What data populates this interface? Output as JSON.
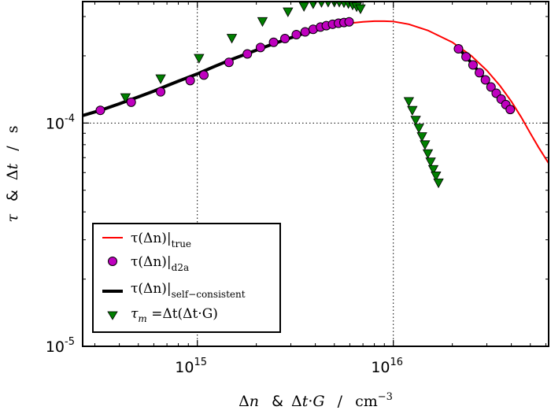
{
  "chart_data": {
    "type": "scatter",
    "xscale": "log",
    "yscale": "log",
    "xlim": [
      260000000000000.0,
      6.2e+16
    ],
    "ylim": [
      1e-05,
      0.00035
    ],
    "grid_x": [
      1000000000000000.0,
      1e+16
    ],
    "grid_y": [
      0.0001
    ],
    "grid": "dotted",
    "xticks": [
      {
        "value": 1000000000000000.0,
        "base": "10",
        "exp": "15"
      },
      {
        "value": 1e+16,
        "base": "10",
        "exp": "16"
      }
    ],
    "yticks": [
      {
        "value": 1e-05,
        "base": "10",
        "exp": "-5"
      },
      {
        "value": 0.0001,
        "base": "10",
        "exp": "-4"
      }
    ],
    "xlabel": {
      "delta": "Δ",
      "n": "n",
      "amp": "&",
      "delta2": "Δ",
      "t": "t",
      "dot": "·",
      "G": "G",
      "slash": "/",
      "unit": "cm",
      "unit_exp": "−3"
    },
    "ylabel": {
      "tau": "τ",
      "amp": "&",
      "delta": "Δ",
      "t": "t",
      "slash": "/",
      "unit": "s"
    },
    "legend_position": "lower-left",
    "series": [
      {
        "name": "τ(Δn)|true",
        "legend": {
          "main": "τ(Δn)",
          "sub": "true"
        },
        "style": "line",
        "color": "#ff0000",
        "x": [
          260000000000000.0,
          320000000000000.0,
          400000000000000.0,
          500000000000000.0,
          600000000000000.0,
          700000000000000.0,
          800000000000000.0,
          1000000000000000.0,
          1200000000000000.0,
          1500000000000000.0,
          2000000000000000.0,
          2500000000000000.0,
          3000000000000000.0,
          4000000000000000.0,
          5000000000000000.0,
          6000000000000000.0,
          7000000000000000.0,
          8000000000000000.0,
          9000000000000000.0,
          1e+16,
          1.2e+16,
          1.5e+16,
          2e+16,
          2.5e+16,
          3e+16,
          3.5e+16,
          4e+16,
          4.5e+16,
          5e+16,
          5.5e+16,
          6.2e+16
        ],
        "y": [
          0.000108,
          0.000114,
          0.000122,
          0.000131,
          0.000139,
          0.000147,
          0.000154,
          0.000166,
          0.000178,
          0.000193,
          0.000212,
          0.000228,
          0.000241,
          0.00026,
          0.000273,
          0.00028,
          0.000284,
          0.000286,
          0.000286,
          0.000285,
          0.000277,
          0.00026,
          0.00023,
          0.0002,
          0.000172,
          0.000147,
          0.000125,
          0.000106,
          9e-05,
          7.8e-05,
          6.6e-05
        ]
      },
      {
        "name": "τ(Δn)|d2a",
        "legend": {
          "main": "τ(Δn)",
          "sub": "d2a"
        },
        "style": "markers",
        "marker": "circle",
        "color": "#bf00bf",
        "x": [
          320000000000000.0,
          460000000000000.0,
          650000000000000.0,
          920000000000000.0,
          1080000000000000.0,
          1450000000000000.0,
          1800000000000000.0,
          2100000000000000.0,
          2450000000000000.0,
          2800000000000000.0,
          3200000000000000.0,
          3550000000000000.0,
          3900000000000000.0,
          4250000000000000.0,
          4550000000000000.0,
          4900000000000000.0,
          5250000000000000.0,
          5600000000000000.0,
          5950000000000000.0,
          2.15e+16,
          2.35e+16,
          2.55e+16,
          2.75e+16,
          2.95e+16,
          3.15e+16,
          3.35e+16,
          3.55e+16,
          3.75e+16,
          3.95e+16
        ],
        "y": [
          0.000114,
          0.000124,
          0.000138,
          0.000155,
          0.000164,
          0.000187,
          0.000204,
          0.000218,
          0.00023,
          0.000239,
          0.000249,
          0.000256,
          0.000263,
          0.000269,
          0.000273,
          0.000277,
          0.00028,
          0.000282,
          0.000284,
          0.000215,
          0.000198,
          0.000182,
          0.000168,
          0.000156,
          0.000145,
          0.000136,
          0.000128,
          0.000121,
          0.000115
        ]
      },
      {
        "name": "τ(Δn)|self−consistent",
        "legend": {
          "main": "τ(Δn)",
          "sub": "self−consistent"
        },
        "style": "line",
        "color": "#000000",
        "segments": [
          {
            "x": [
              260000000000000.0,
              320000000000000.0,
              400000000000000.0,
              500000000000000.0,
              600000000000000.0,
              700000000000000.0,
              800000000000000.0,
              1000000000000000.0,
              1200000000000000.0,
              1500000000000000.0,
              2000000000000000.0,
              2500000000000000.0,
              3000000000000000.0,
              3500000000000000.0,
              4000000000000000.0,
              4500000000000000.0,
              5000000000000000.0,
              5500000000000000.0,
              6000000000000000.0
            ],
            "y": [
              0.000108,
              0.000114,
              0.000122,
              0.000131,
              0.000139,
              0.000147,
              0.000154,
              0.000166,
              0.000178,
              0.000193,
              0.000212,
              0.000228,
              0.000241,
              0.000252,
              0.00026,
              0.000267,
              0.000273,
              0.000277,
              0.00028
            ]
          },
          {
            "x": [
              2.1e+16,
              2.35e+16,
              2.6e+16,
              2.85e+16,
              3.1e+16,
              3.35e+16,
              3.6e+16,
              3.85e+16,
              4e+16
            ],
            "y": [
              0.000222,
              0.000198,
              0.000179,
              0.000162,
              0.000148,
              0.000136,
              0.000126,
              0.000117,
              0.000112
            ]
          }
        ]
      },
      {
        "name": "τm =Δt(Δt·G)",
        "legend": {
          "main": "τ",
          "sub": "m",
          "rest": " =Δt(Δt·G)"
        },
        "style": "markers",
        "marker": "triangle-down",
        "color": "#007f00",
        "x": [
          430000000000000.0,
          650000000000000.0,
          1020000000000000.0,
          1500000000000000.0,
          2150000000000000.0,
          2900000000000000.0,
          3500000000000000.0,
          3900000000000000.0,
          4300000000000000.0,
          4650000000000000.0,
          5000000000000000.0,
          5300000000000000.0,
          5600000000000000.0,
          5900000000000000.0,
          6200000000000000.0,
          6500000000000000.0,
          6800000000000000.0,
          1.2e+16,
          1.25e+16,
          1.3e+16,
          1.35e+16,
          1.4e+16,
          1.45e+16,
          1.5e+16,
          1.55e+16,
          1.6e+16,
          1.65e+16,
          1.7e+16
        ],
        "y": [
          0.00013,
          0.000158,
          0.000195,
          0.00024,
          0.000285,
          0.000315,
          0.000333,
          0.000342,
          0.000347,
          0.000348,
          0.000348,
          0.000348,
          0.000346,
          0.000343,
          0.000338,
          0.000332,
          0.000325,
          0.000125,
          0.000114,
          0.000103,
          9.5e-05,
          8.7e-05,
          8e-05,
          7.3e-05,
          6.7e-05,
          6.2e-05,
          5.8e-05,
          5.4e-05
        ]
      }
    ]
  }
}
